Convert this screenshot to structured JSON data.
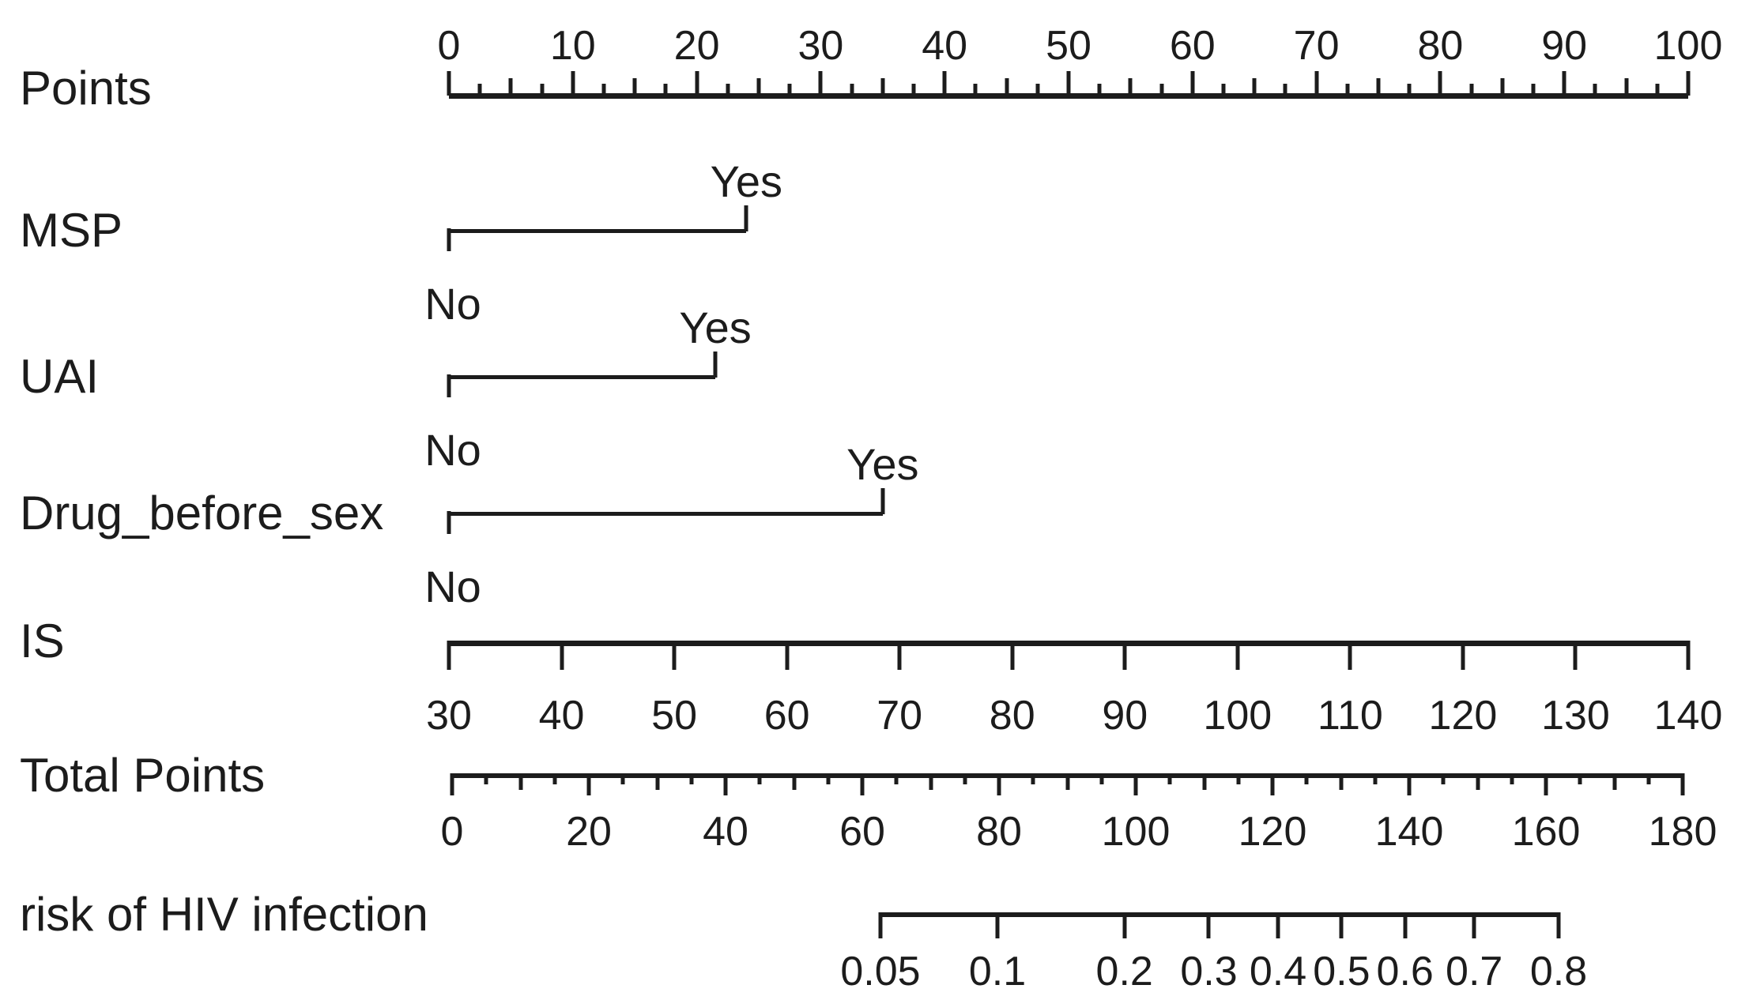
{
  "chart_data": {
    "type": "nomogram",
    "title": "",
    "background_color": "#ffffff",
    "ink_color": "#1c1c1c",
    "rows": [
      {
        "id": "points",
        "kind": "axis",
        "label": "Points",
        "scale": "linear",
        "range": [
          0,
          100
        ],
        "tick_step": {
          "major": 10,
          "mid": 5,
          "minor": 2.5
        },
        "tick_labels": [
          "0",
          "10",
          "20",
          "30",
          "40",
          "50",
          "60",
          "70",
          "80",
          "90",
          "100"
        ],
        "tick_side": "up",
        "label_side": "above"
      },
      {
        "id": "msp",
        "kind": "binary",
        "label": "MSP",
        "levels": [
          {
            "label": "No",
            "points": 0,
            "tick": "down",
            "label_side": "below"
          },
          {
            "label": "Yes",
            "points": 24,
            "tick": "up",
            "label_side": "above"
          }
        ]
      },
      {
        "id": "uai",
        "kind": "binary",
        "label": "UAI",
        "levels": [
          {
            "label": "No",
            "points": 0,
            "tick": "down",
            "label_side": "below"
          },
          {
            "label": "Yes",
            "points": 21.5,
            "tick": "up",
            "label_side": "above"
          }
        ]
      },
      {
        "id": "drug_before_sex",
        "kind": "binary",
        "label": "Drug_before_sex",
        "levels": [
          {
            "label": "No",
            "points": 0,
            "tick": "down",
            "label_side": "below"
          },
          {
            "label": "Yes",
            "points": 35,
            "tick": "up",
            "label_side": "above"
          }
        ]
      },
      {
        "id": "is",
        "kind": "axis",
        "label": "IS",
        "scale": "linear",
        "range": [
          30,
          140
        ],
        "tick_step": {
          "major": 10
        },
        "tick_labels": [
          "30",
          "40",
          "50",
          "60",
          "70",
          "80",
          "90",
          "100",
          "110",
          "120",
          "130",
          "140"
        ],
        "tick_side": "down",
        "label_side": "below"
      },
      {
        "id": "total_points",
        "kind": "axis",
        "label": "Total Points",
        "scale": "linear",
        "range": [
          0,
          180
        ],
        "tick_step": {
          "major": 20,
          "mid": 10,
          "minor": 5
        },
        "tick_labels": [
          "0",
          "20",
          "40",
          "60",
          "80",
          "100",
          "120",
          "140",
          "160",
          "180"
        ],
        "tick_side": "down",
        "label_side": "below"
      },
      {
        "id": "risk",
        "kind": "axis",
        "label": "risk of HIV infection",
        "scale": "logit",
        "range": [
          0.05,
          0.8
        ],
        "tick_values": [
          0.05,
          0.1,
          0.2,
          0.3,
          0.4,
          0.5,
          0.6,
          0.7,
          0.8
        ],
        "tick_labels": [
          "0.05",
          "0.1",
          "0.2",
          "0.3",
          "0.4",
          "0.5",
          "0.6",
          "0.7",
          "0.8"
        ],
        "tick_side": "down",
        "label_side": "below"
      }
    ]
  }
}
